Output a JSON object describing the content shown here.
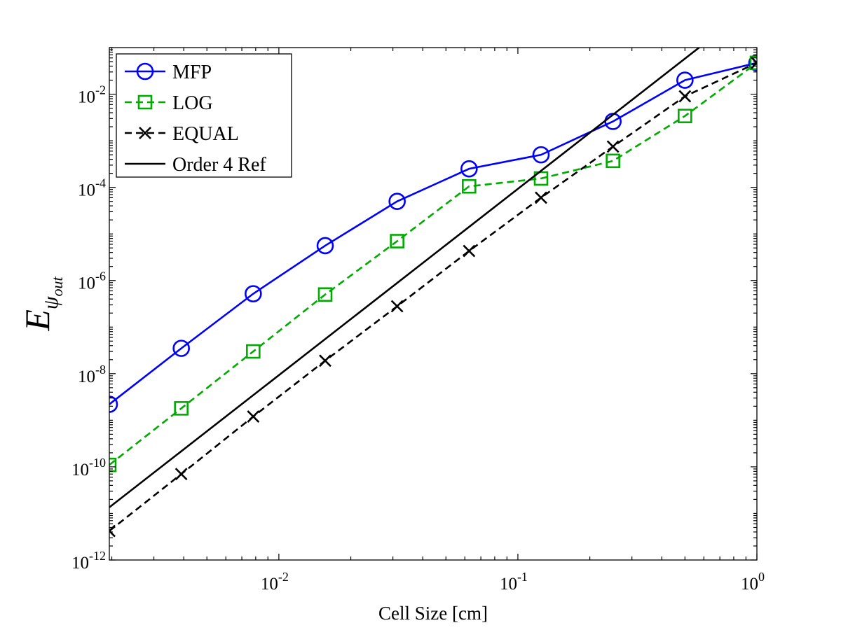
{
  "chart_data": {
    "type": "line",
    "xlabel": "Cell Size [cm]",
    "ylabel": "E_{ψ_{out}}",
    "ylabel_parts": {
      "main": "E",
      "sub": "ψ",
      "subsub": "out"
    },
    "xscale": "log",
    "yscale": "log",
    "xlim": [
      0.001953125,
      1
    ],
    "ylim": [
      1e-12,
      0.1
    ],
    "grid": false,
    "legend_position": "top-left",
    "x_ticks": [
      {
        "value": 0.01,
        "base": "10",
        "exp": "-2"
      },
      {
        "value": 0.1,
        "base": "10",
        "exp": "-1"
      },
      {
        "value": 1,
        "base": "10",
        "exp": "0"
      }
    ],
    "y_ticks": [
      {
        "value": 1e-12,
        "base": "10",
        "exp": "-12"
      },
      {
        "value": 1e-10,
        "base": "10",
        "exp": "-10"
      },
      {
        "value": 1e-08,
        "base": "10",
        "exp": "-8"
      },
      {
        "value": 1e-06,
        "base": "10",
        "exp": "-6"
      },
      {
        "value": 0.0001,
        "base": "10",
        "exp": "-4"
      },
      {
        "value": 0.01,
        "base": "10",
        "exp": "-2"
      }
    ],
    "x": [
      0.001953125,
      0.00390625,
      0.0078125,
      0.015625,
      0.03125,
      0.0625,
      0.125,
      0.25,
      0.5,
      1
    ],
    "series": [
      {
        "name": "MFP",
        "color": "#0000ff",
        "line_style": "solid",
        "marker": "circle",
        "values": [
          2.2e-09,
          3.5e-08,
          5.2e-07,
          5.6e-06,
          5e-05,
          0.00025,
          0.0005,
          0.0026,
          0.02,
          0.047
        ]
      },
      {
        "name": "LOG",
        "color": "#00aa00",
        "line_style": "dashed",
        "marker": "square",
        "values": [
          1.1e-10,
          1.8e-09,
          3e-08,
          5e-07,
          7e-06,
          0.000105,
          0.000155,
          0.00037,
          0.0034,
          0.047
        ]
      },
      {
        "name": "EQUAL",
        "color": "#000000",
        "line_style": "dashed",
        "marker": "x",
        "values": [
          4.2e-12,
          7e-11,
          1.2e-09,
          1.9e-08,
          2.8e-07,
          4.3e-06,
          6e-05,
          0.00075,
          0.009,
          0.047
        ]
      },
      {
        "name": "Order 4 Ref",
        "color": "#000000",
        "line_style": "solid",
        "marker": "none",
        "ref_line": {
          "x0": 0.001953125,
          "y0": 1.35e-11,
          "order": 4
        }
      }
    ]
  }
}
